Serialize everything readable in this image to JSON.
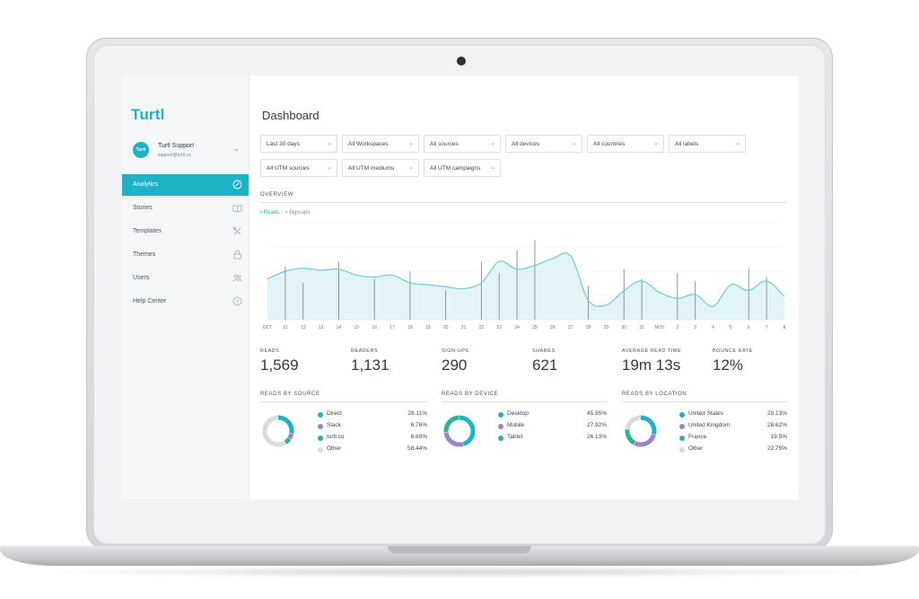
{
  "sidebar": {
    "logo": "Turtl",
    "account": {
      "avatar_text": "Turtl",
      "name": "Turtl Support",
      "email": "support@turtl.co"
    },
    "items": [
      {
        "label": "Analytics",
        "icon": "analytics-icon",
        "active": true
      },
      {
        "label": "Stories",
        "icon": "book-icon",
        "active": false
      },
      {
        "label": "Templates",
        "icon": "tools-icon",
        "active": false
      },
      {
        "label": "Themes",
        "icon": "lock-icon",
        "active": false
      },
      {
        "label": "Users",
        "icon": "users-icon",
        "active": false
      },
      {
        "label": "Help Center",
        "icon": "help-icon",
        "active": false
      }
    ]
  },
  "header": {
    "title": "Dashboard"
  },
  "filters": {
    "row1": [
      "Last 30 days",
      "All Workspaces",
      "All sources",
      "All devices",
      "All countries",
      "All labels"
    ],
    "row2": [
      "All UTM sources",
      "All UTM mediums",
      "All UTM campaigns"
    ]
  },
  "overview": {
    "title": "OVERVIEW",
    "legend": {
      "reads": "Reads",
      "signups": "Sign-ups"
    }
  },
  "chart_data": {
    "type": "area",
    "categories": [
      "OCT",
      "11",
      "12",
      "13",
      "14",
      "15",
      "16",
      "17",
      "18",
      "19",
      "20",
      "21",
      "22",
      "23",
      "24",
      "25",
      "26",
      "27",
      "28",
      "29",
      "30",
      "31",
      "NOV",
      "2",
      "3",
      "4",
      "5",
      "6",
      "7",
      "8"
    ],
    "series": [
      {
        "name": "Reads",
        "color": "#6fcad6",
        "values": [
          42,
          50,
          53,
          51,
          52,
          46,
          44,
          46,
          38,
          36,
          34,
          32,
          38,
          60,
          52,
          56,
          63,
          66,
          20,
          15,
          30,
          40,
          28,
          22,
          26,
          14,
          36,
          30,
          40,
          24
        ]
      },
      {
        "name": "Sign-ups",
        "color": "#7d8a99",
        "values": [
          0,
          55,
          38,
          0,
          60,
          0,
          42,
          0,
          50,
          0,
          30,
          0,
          60,
          48,
          72,
          82,
          0,
          0,
          35,
          0,
          52,
          42,
          0,
          48,
          40,
          0,
          0,
          53,
          44,
          0
        ]
      }
    ],
    "ylim": [
      0,
      100
    ],
    "grid": true,
    "legend": "top-left"
  },
  "stats": [
    {
      "label": "READS",
      "value": "1,569"
    },
    {
      "label": "READERS",
      "value": "1,131"
    },
    {
      "label": "SIGN-UPS",
      "value": "290"
    },
    {
      "label": "SHARES",
      "value": "621"
    },
    {
      "label": "AVERAGE READ TIME",
      "value": "19m 13s"
    },
    {
      "label": "BOUNCE RATE",
      "value": "12%"
    }
  ],
  "breakdowns": [
    {
      "title": "READS BY SOURCE",
      "items": [
        {
          "name": "Direct",
          "value": "28.11%",
          "pct": 28.11,
          "color": "#1fb1c6"
        },
        {
          "name": "Slack",
          "value": "6.76%",
          "pct": 6.76,
          "color": "#9b84c9"
        },
        {
          "name": "turtl.co",
          "value": "6.69%",
          "pct": 6.69,
          "color": "#2ab58f"
        },
        {
          "name": "Other",
          "value": "58.44%",
          "pct": 58.44,
          "color": "#d9dcdf"
        }
      ]
    },
    {
      "title": "READS BY DEVICE",
      "items": [
        {
          "name": "Desktop",
          "value": "45.95%",
          "pct": 45.95,
          "color": "#1fb1c6"
        },
        {
          "name": "Mobile",
          "value": "27.92%",
          "pct": 27.92,
          "color": "#9b84c9"
        },
        {
          "name": "Tablet",
          "value": "26.13%",
          "pct": 26.13,
          "color": "#2ab58f"
        }
      ]
    },
    {
      "title": "READS BY LOCATION",
      "items": [
        {
          "name": "United States",
          "value": "29.13%",
          "pct": 29.13,
          "color": "#1fb1c6"
        },
        {
          "name": "United Kingdom",
          "value": "28.62%",
          "pct": 28.62,
          "color": "#9b84c9"
        },
        {
          "name": "France",
          "value": "19.5%",
          "pct": 19.5,
          "color": "#2ab58f"
        },
        {
          "name": "Other",
          "value": "22.75%",
          "pct": 22.75,
          "color": "#d9dcdf"
        }
      ]
    }
  ]
}
